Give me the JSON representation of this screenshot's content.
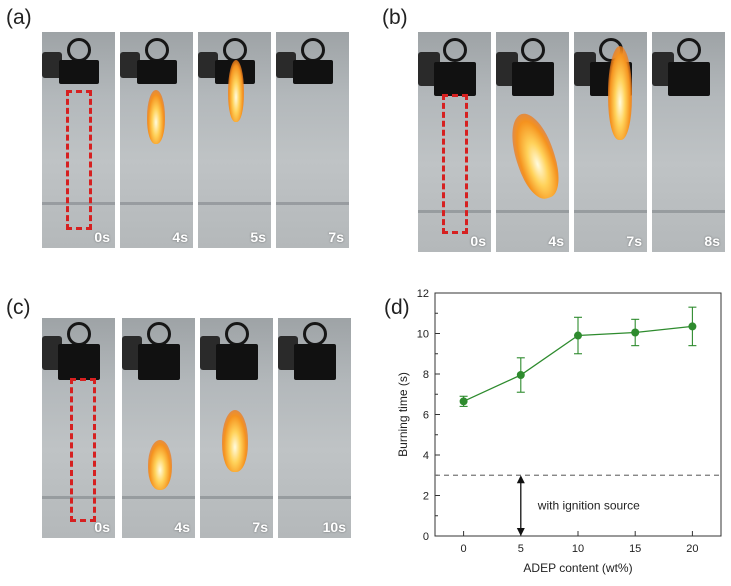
{
  "panels": {
    "a": {
      "label": "(a)",
      "times": [
        "0s",
        "4s",
        "5s",
        "7s"
      ]
    },
    "b": {
      "label": "(b)",
      "times": [
        "0s",
        "4s",
        "7s",
        "8s"
      ]
    },
    "c": {
      "label": "(c)",
      "times": [
        "0s",
        "4s",
        "7s",
        "10s"
      ]
    },
    "d": {
      "label": "(d)"
    }
  },
  "colors": {
    "series": "#2e8b2e",
    "dashed_line": "#777777",
    "sample_outline": "#d62020"
  },
  "chart_data": {
    "type": "line",
    "xlabel": "ADEP content (wt%)",
    "ylabel": "Burning time (s)",
    "x": [
      0,
      5,
      10,
      15,
      20
    ],
    "y": [
      6.65,
      7.95,
      9.9,
      10.05,
      10.35
    ],
    "error": [
      0.25,
      0.85,
      0.9,
      0.65,
      0.95
    ],
    "xlim": [
      -2.5,
      22.5
    ],
    "ylim": [
      0,
      12
    ],
    "xticks": [
      0,
      5,
      10,
      15,
      20
    ],
    "yticks": [
      0,
      2,
      4,
      6,
      8,
      10,
      12
    ],
    "reference_line": {
      "y": 3.0,
      "style": "dashed"
    },
    "annotation": {
      "text": "with ignition source",
      "arrow": "double-headed, vertical, from 0 to 3"
    },
    "grid": false,
    "legend": "none"
  }
}
